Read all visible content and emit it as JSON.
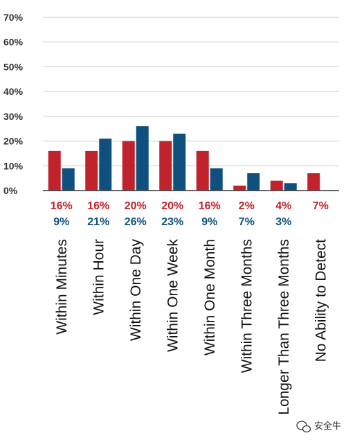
{
  "chart_data": {
    "type": "bar",
    "categories": [
      "Within Minutes",
      "Within Hour",
      "Within One Day",
      "Within One Week",
      "Within One Month",
      "Within Three Months",
      "Longer Than Three Months",
      "No Ability to Detect"
    ],
    "series": [
      {
        "values": [
          16,
          16,
          20,
          20,
          16,
          2,
          4,
          7
        ],
        "labels": [
          "16%",
          "16%",
          "20%",
          "20%",
          "16%",
          "2%",
          "4%",
          "7%"
        ],
        "color": "#c0232c"
      },
      {
        "values": [
          9,
          21,
          26,
          23,
          9,
          7,
          3,
          null
        ],
        "labels": [
          "9%",
          "21%",
          "26%",
          "23%",
          "9%",
          "7%",
          "3%",
          ""
        ],
        "color": "#10507f"
      }
    ],
    "yticks": [
      "0%",
      "10%",
      "20%",
      "30%",
      "40%",
      "50%",
      "60%",
      "70%"
    ],
    "ylim": [
      0,
      70
    ],
    "grid": true,
    "title": "",
    "xlabel": "",
    "ylabel": ""
  },
  "watermark": {
    "text": "安全牛",
    "icon": "wechat-icon"
  }
}
